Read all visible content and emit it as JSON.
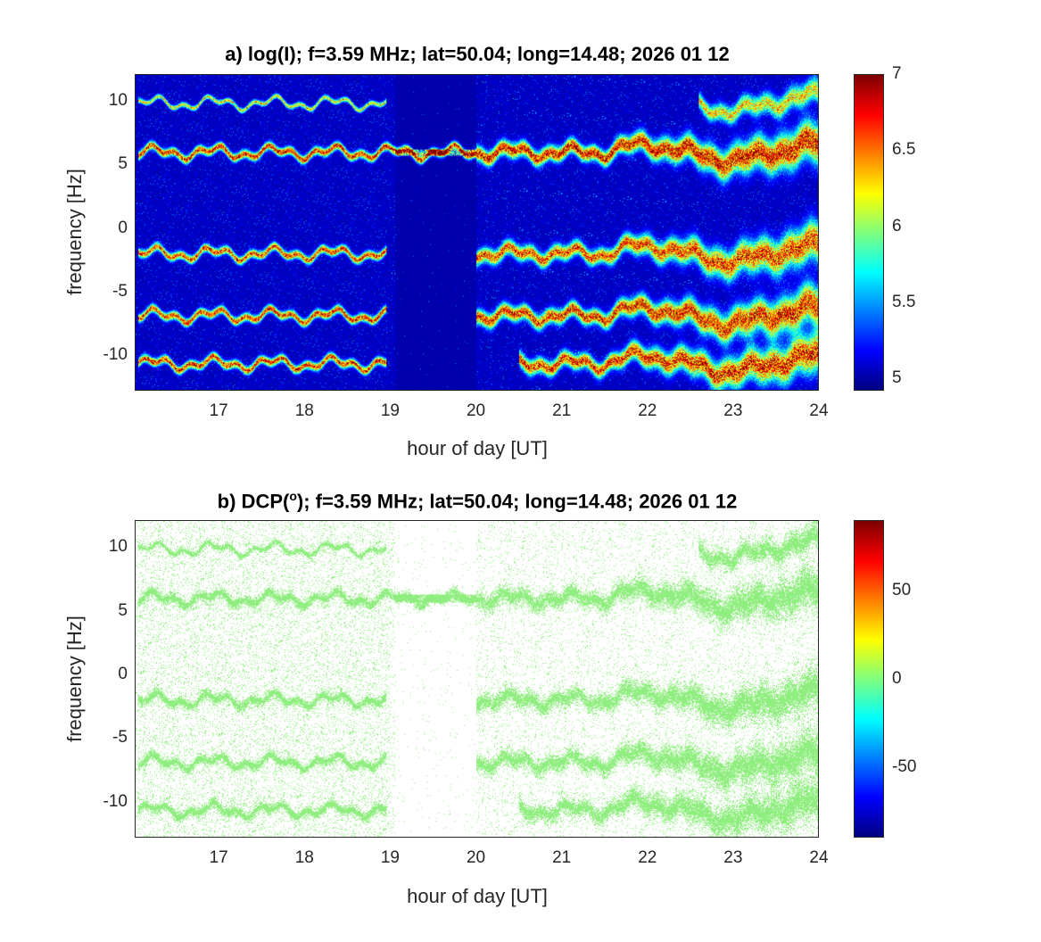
{
  "chart_data": [
    {
      "type": "heatmap",
      "title": "a) log(I); f=3.59 MHz;  lat=50.04; long=14.48; 2026 01 12",
      "xlabel": "hour of day [UT]",
      "ylabel": "frequency [Hz]",
      "xlim": [
        16.02,
        24
      ],
      "ylim": [
        -12.8,
        12.1
      ],
      "xticks": [
        "17",
        "18",
        "19",
        "20",
        "21",
        "22",
        "23",
        "24"
      ],
      "yticks": [
        "10",
        "5",
        "0",
        "-5",
        "-10"
      ],
      "colorbar": {
        "range": [
          4.92,
          7
        ],
        "ticks": [
          "7",
          "6.5",
          "6",
          "5.5",
          "5"
        ],
        "colormap": "jet"
      },
      "background_value": 5.0,
      "bands": [
        {
          "center_hz": 9.9,
          "segments": [
            [
              16.05,
              18.95
            ],
            [
              22.6,
              24
            ]
          ],
          "peak": 6.4
        },
        {
          "center_hz": 6.0,
          "segments": [
            [
              16.05,
              24
            ]
          ],
          "peak": 7.0
        },
        {
          "center_hz": -2.0,
          "segments": [
            [
              16.05,
              18.95
            ],
            [
              20.0,
              24
            ]
          ],
          "peak": 6.8
        },
        {
          "center_hz": -6.9,
          "segments": [
            [
              16.05,
              18.95
            ],
            [
              20.0,
              24
            ]
          ],
          "peak": 6.9
        },
        {
          "center_hz": -10.7,
          "segments": [
            [
              16.05,
              18.95
            ],
            [
              20.5,
              24
            ]
          ],
          "peak": 6.9
        }
      ]
    },
    {
      "type": "heatmap",
      "title_prefix": "b) DCP(",
      "title_sup": "o",
      "title_suffix": "); f=3.59 MHz;  lat=50.04; long=14.48; 2026 01 12",
      "xlabel": "hour of day [UT]",
      "ylabel": "frequency [Hz]",
      "xlim": [
        16.02,
        24
      ],
      "ylim": [
        -12.8,
        12.1
      ],
      "xticks": [
        "17",
        "18",
        "19",
        "20",
        "21",
        "22",
        "23",
        "24"
      ],
      "yticks": [
        "10",
        "5",
        "0",
        "-5",
        "-10"
      ],
      "colorbar": {
        "range": [
          -90,
          90
        ],
        "ticks": [
          "50",
          "0",
          "-50"
        ],
        "colormap": "jet"
      },
      "dominant_value": 0,
      "point_color": "#90ee80"
    }
  ]
}
